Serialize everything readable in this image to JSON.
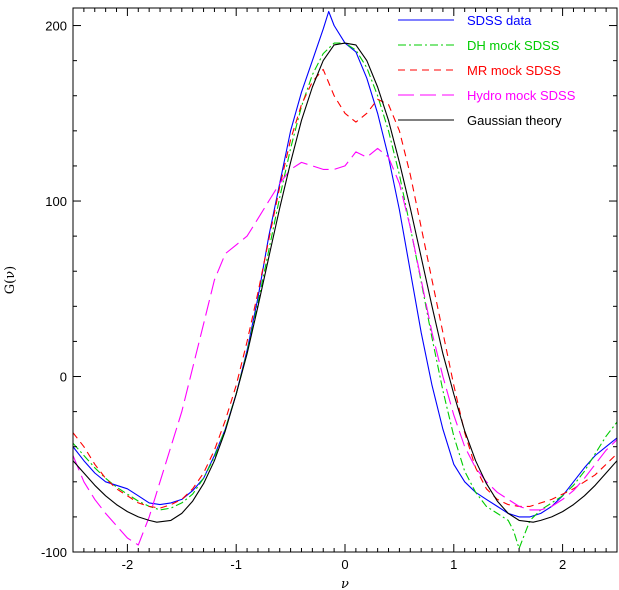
{
  "chart_data": {
    "type": "line",
    "title": "",
    "xlabel": "ν",
    "ylabel": "G(ν)",
    "xlim": [
      -2.5,
      2.5
    ],
    "ylim": [
      -100,
      210
    ],
    "x_ticks": [
      -2,
      -1,
      0,
      1,
      2
    ],
    "x_tick_labels": [
      "-2",
      "-1",
      "0",
      "1",
      "2"
    ],
    "y_ticks": [
      -100,
      0,
      100,
      200
    ],
    "y_tick_labels": [
      "-100",
      "0",
      "100",
      "200"
    ],
    "grid": false,
    "legend_position": "top-right",
    "series": [
      {
        "name": "SDSS data",
        "color": "#0000ff",
        "dash": "solid",
        "x": [
          -2.5,
          -2.4,
          -2.3,
          -2.2,
          -2.1,
          -2.0,
          -1.9,
          -1.8,
          -1.7,
          -1.6,
          -1.5,
          -1.4,
          -1.3,
          -1.2,
          -1.1,
          -1.0,
          -0.9,
          -0.8,
          -0.7,
          -0.6,
          -0.5,
          -0.4,
          -0.3,
          -0.2,
          -0.15,
          -0.1,
          0.0,
          0.1,
          0.2,
          0.3,
          0.4,
          0.5,
          0.6,
          0.7,
          0.8,
          0.9,
          1.0,
          1.1,
          1.2,
          1.3,
          1.4,
          1.5,
          1.6,
          1.7,
          1.8,
          1.9,
          2.0,
          2.1,
          2.2,
          2.3,
          2.4,
          2.5
        ],
        "y": [
          -40,
          -48,
          -55,
          -60,
          -62,
          -64,
          -68,
          -72,
          -73,
          -72,
          -70,
          -65,
          -58,
          -45,
          -30,
          -10,
          15,
          45,
          80,
          110,
          140,
          162,
          180,
          198,
          208,
          200,
          190,
          185,
          170,
          150,
          125,
          95,
          60,
          25,
          -5,
          -30,
          -50,
          -60,
          -66,
          -70,
          -74,
          -78,
          -80,
          -80,
          -78,
          -74,
          -68,
          -60,
          -52,
          -45,
          -40,
          -35
        ]
      },
      {
        "name": "DH mock SDSS",
        "color": "#00cc00",
        "dash": "dashdot",
        "x": [
          -2.5,
          -2.4,
          -2.3,
          -2.2,
          -2.1,
          -2.0,
          -1.9,
          -1.8,
          -1.7,
          -1.6,
          -1.5,
          -1.4,
          -1.3,
          -1.2,
          -1.1,
          -1.0,
          -0.9,
          -0.8,
          -0.7,
          -0.6,
          -0.5,
          -0.4,
          -0.3,
          -0.2,
          -0.1,
          0.0,
          0.1,
          0.2,
          0.3,
          0.4,
          0.5,
          0.6,
          0.7,
          0.8,
          0.9,
          1.0,
          1.1,
          1.2,
          1.3,
          1.4,
          1.5,
          1.55,
          1.6,
          1.65,
          1.7,
          1.8,
          1.9,
          2.0,
          2.1,
          2.2,
          2.3,
          2.4,
          2.5
        ],
        "y": [
          -38,
          -45,
          -52,
          -58,
          -63,
          -67,
          -71,
          -74,
          -76,
          -75,
          -72,
          -67,
          -58,
          -46,
          -30,
          -10,
          14,
          42,
          72,
          102,
          130,
          154,
          172,
          184,
          190,
          190,
          186,
          176,
          160,
          140,
          115,
          85,
          54,
          22,
          -8,
          -34,
          -54,
          -66,
          -74,
          -78,
          -82,
          -88,
          -98,
          -90,
          -82,
          -76,
          -72,
          -68,
          -62,
          -54,
          -44,
          -34,
          -26
        ]
      },
      {
        "name": "MR mock SDSS",
        "color": "#ff0000",
        "dash": "dash",
        "x": [
          -2.5,
          -2.4,
          -2.3,
          -2.2,
          -2.1,
          -2.0,
          -1.9,
          -1.8,
          -1.7,
          -1.6,
          -1.5,
          -1.4,
          -1.3,
          -1.2,
          -1.1,
          -1.0,
          -0.9,
          -0.8,
          -0.7,
          -0.6,
          -0.5,
          -0.4,
          -0.3,
          -0.2,
          -0.1,
          0.0,
          0.1,
          0.2,
          0.3,
          0.4,
          0.5,
          0.6,
          0.7,
          0.8,
          0.9,
          1.0,
          1.1,
          1.2,
          1.3,
          1.4,
          1.5,
          1.6,
          1.7,
          1.8,
          1.9,
          2.0,
          2.1,
          2.2,
          2.3,
          2.4,
          2.5
        ],
        "y": [
          -32,
          -40,
          -50,
          -58,
          -64,
          -68,
          -72,
          -74,
          -75,
          -73,
          -70,
          -64,
          -55,
          -42,
          -25,
          -5,
          20,
          48,
          78,
          108,
          135,
          155,
          168,
          175,
          160,
          150,
          145,
          150,
          158,
          155,
          140,
          115,
          85,
          55,
          25,
          -5,
          -32,
          -52,
          -64,
          -70,
          -73,
          -74,
          -74,
          -72,
          -70,
          -67,
          -64,
          -60,
          -56,
          -50,
          -44
        ]
      },
      {
        "name": "Hydro mock SDSS",
        "color": "#ff00ff",
        "dash": "longdash",
        "x": [
          -2.5,
          -2.4,
          -2.3,
          -2.2,
          -2.1,
          -2.0,
          -1.9,
          -1.8,
          -1.7,
          -1.6,
          -1.5,
          -1.4,
          -1.3,
          -1.2,
          -1.1,
          -1.0,
          -0.9,
          -0.8,
          -0.7,
          -0.6,
          -0.5,
          -0.4,
          -0.3,
          -0.2,
          -0.1,
          0.0,
          0.1,
          0.2,
          0.3,
          0.4,
          0.5,
          0.6,
          0.7,
          0.8,
          0.9,
          1.0,
          1.1,
          1.2,
          1.3,
          1.4,
          1.5,
          1.6,
          1.7,
          1.8,
          1.9,
          2.0,
          2.1,
          2.2,
          2.3,
          2.4,
          2.5
        ],
        "y": [
          -45,
          -60,
          -70,
          -78,
          -85,
          -92,
          -96,
          -80,
          -60,
          -40,
          -20,
          5,
          30,
          55,
          70,
          75,
          80,
          90,
          100,
          110,
          118,
          122,
          120,
          118,
          118,
          120,
          128,
          125,
          130,
          125,
          110,
          85,
          55,
          25,
          0,
          -22,
          -40,
          -52,
          -60,
          -66,
          -70,
          -74,
          -76,
          -76,
          -74,
          -70,
          -65,
          -58,
          -50,
          -42,
          -36
        ]
      },
      {
        "name": "Gaussian theory",
        "color": "#000000",
        "dash": "solid",
        "x": [
          -2.5,
          -2.4,
          -2.3,
          -2.2,
          -2.1,
          -2.0,
          -1.9,
          -1.8,
          -1.73,
          -1.6,
          -1.5,
          -1.4,
          -1.3,
          -1.2,
          -1.1,
          -1.0,
          -0.9,
          -0.8,
          -0.7,
          -0.6,
          -0.5,
          -0.4,
          -0.3,
          -0.2,
          -0.1,
          0.0,
          0.1,
          0.2,
          0.3,
          0.4,
          0.5,
          0.6,
          0.7,
          0.8,
          0.9,
          1.0,
          1.1,
          1.2,
          1.3,
          1.4,
          1.5,
          1.6,
          1.73,
          1.8,
          1.9,
          2.0,
          2.1,
          2.2,
          2.3,
          2.4,
          2.5
        ],
        "y": [
          -48,
          -55,
          -62,
          -68,
          -73,
          -77,
          -80,
          -82,
          -83,
          -82,
          -78,
          -71,
          -61,
          -48,
          -31,
          -10,
          13,
          40,
          68,
          96,
          122,
          146,
          165,
          180,
          189,
          190,
          189,
          180,
          165,
          146,
          122,
          96,
          68,
          40,
          13,
          -10,
          -31,
          -48,
          -61,
          -71,
          -78,
          -82,
          -83,
          -82,
          -80,
          -77,
          -73,
          -68,
          -62,
          -55,
          -48
        ]
      }
    ]
  }
}
